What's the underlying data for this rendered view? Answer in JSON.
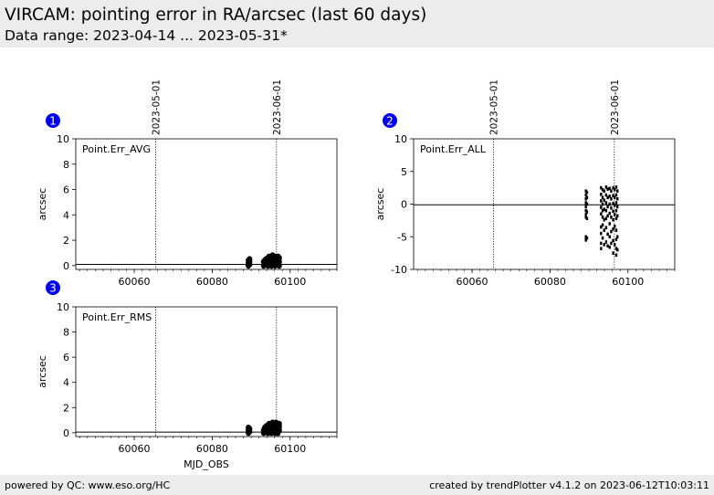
{
  "header": {
    "title": "VIRCAM: pointing error in RA/arcsec (last 60 days)",
    "subtitle": "Data range: 2023-04-14 ... 2023-05-31*"
  },
  "footer": {
    "left": "powered by QC: www.eso.org/HC",
    "right": "created by trendPlotter v4.1.2 on 2023-06-12T10:03:11"
  },
  "chart_data": [
    {
      "type": "scatter",
      "panel_number": "1",
      "label": "Point.Err_AVG",
      "ylabel": "arcsec",
      "xlabel": "",
      "xlim": [
        60045,
        60112
      ],
      "ylim": [
        -0.3,
        10
      ],
      "yticks": [
        0,
        2,
        4,
        6,
        8,
        10
      ],
      "xticks": [
        60060,
        60080,
        60100
      ],
      "reference_line": 0.1,
      "date_markers": [
        {
          "x": 60065.5,
          "label": "2023-05-01"
        },
        {
          "x": 60096.5,
          "label": "2023-06-01"
        }
      ],
      "points": [
        [
          60089.3,
          0.0
        ],
        [
          60089.3,
          0.2
        ],
        [
          60089.3,
          0.4
        ],
        [
          60089.3,
          0.1
        ],
        [
          60089.6,
          0.1
        ],
        [
          60089.6,
          0.3
        ],
        [
          60089.6,
          0.5
        ],
        [
          60093.2,
          0.0
        ],
        [
          60093.2,
          0.3
        ],
        [
          60093.5,
          0.1
        ],
        [
          60093.5,
          0.4
        ],
        [
          60093.8,
          0.2
        ],
        [
          60093.8,
          0.5
        ],
        [
          60094.3,
          0.0
        ],
        [
          60094.3,
          0.3
        ],
        [
          60094.3,
          0.6
        ],
        [
          60094.6,
          0.1
        ],
        [
          60094.6,
          0.4
        ],
        [
          60094.6,
          0.7
        ],
        [
          60095.2,
          0.0
        ],
        [
          60095.2,
          0.2
        ],
        [
          60095.2,
          0.5
        ],
        [
          60095.5,
          0.3
        ],
        [
          60095.5,
          0.6
        ],
        [
          60095.5,
          0.8
        ],
        [
          60096.1,
          0.0
        ],
        [
          60096.1,
          0.3
        ],
        [
          60096.1,
          0.6
        ],
        [
          60096.4,
          0.2
        ],
        [
          60096.4,
          0.5
        ],
        [
          60096.4,
          0.7
        ],
        [
          60096.9,
          0.1
        ],
        [
          60096.9,
          0.4
        ],
        [
          60096.9,
          0.7
        ],
        [
          60097.2,
          0.0
        ],
        [
          60097.2,
          0.3
        ],
        [
          60097.2,
          0.6
        ]
      ]
    },
    {
      "type": "scatter",
      "panel_number": "2",
      "label": "Point.Err_ALL",
      "ylabel": "arcsec",
      "xlabel": "",
      "xlim": [
        60045,
        60112
      ],
      "ylim": [
        -10,
        10
      ],
      "yticks": [
        -10,
        -5,
        0,
        5,
        10
      ],
      "xticks": [
        60060,
        60080,
        60100
      ],
      "reference_line": -0.1,
      "date_markers": [
        {
          "x": 60065.5,
          "label": "2023-05-01"
        },
        {
          "x": 60096.5,
          "label": "2023-06-01"
        }
      ],
      "points": [
        [
          60089.2,
          2.0
        ],
        [
          60089.2,
          1.4
        ],
        [
          60089.2,
          0.8
        ],
        [
          60089.2,
          0.2
        ],
        [
          60089.2,
          -0.4
        ],
        [
          60089.2,
          -1.0
        ],
        [
          60089.2,
          -1.6
        ],
        [
          60089.2,
          -2.0
        ],
        [
          60089.2,
          -5.0
        ],
        [
          60089.2,
          -5.5
        ],
        [
          60089.5,
          1.8
        ],
        [
          60089.5,
          1.0
        ],
        [
          60089.5,
          0.0
        ],
        [
          60089.5,
          -1.2
        ],
        [
          60089.5,
          -2.2
        ],
        [
          60089.5,
          -5.2
        ],
        [
          60093.1,
          2.5
        ],
        [
          60093.1,
          1.5
        ],
        [
          60093.1,
          0.5
        ],
        [
          60093.1,
          -0.5
        ],
        [
          60093.1,
          -1.5
        ],
        [
          60093.1,
          -3.5
        ],
        [
          60093.1,
          -4.5
        ],
        [
          60093.1,
          -6.0
        ],
        [
          60093.1,
          -6.8
        ],
        [
          60093.5,
          2.2
        ],
        [
          60093.5,
          1.0
        ],
        [
          60093.5,
          0.0
        ],
        [
          60093.5,
          -1.0
        ],
        [
          60093.5,
          -2.0
        ],
        [
          60093.5,
          -3.2
        ],
        [
          60093.5,
          -5.2
        ],
        [
          60093.9,
          2.0
        ],
        [
          60093.9,
          0.6
        ],
        [
          60093.9,
          -0.8
        ],
        [
          60093.9,
          -2.4
        ],
        [
          60093.9,
          -4.0
        ],
        [
          60093.9,
          -6.2
        ],
        [
          60094.4,
          2.6
        ],
        [
          60094.4,
          1.4
        ],
        [
          60094.4,
          0.2
        ],
        [
          60094.4,
          -1.0
        ],
        [
          60094.4,
          -2.2
        ],
        [
          60094.4,
          -3.6
        ],
        [
          60094.4,
          -5.8
        ],
        [
          60094.8,
          2.3
        ],
        [
          60094.8,
          1.0
        ],
        [
          60094.8,
          -0.4
        ],
        [
          60094.8,
          -1.8
        ],
        [
          60094.8,
          -4.6
        ],
        [
          60094.8,
          -6.4
        ],
        [
          60095.3,
          2.4
        ],
        [
          60095.3,
          1.2
        ],
        [
          60095.3,
          0.0
        ],
        [
          60095.3,
          -1.4
        ],
        [
          60095.3,
          -3.0
        ],
        [
          60095.3,
          -5.0
        ],
        [
          60095.3,
          -6.6
        ],
        [
          60095.7,
          2.0
        ],
        [
          60095.7,
          0.8
        ],
        [
          60095.7,
          -0.6
        ],
        [
          60095.7,
          -2.0
        ],
        [
          60095.7,
          -4.2
        ],
        [
          60095.7,
          -6.0
        ],
        [
          60096.2,
          2.5
        ],
        [
          60096.2,
          1.3
        ],
        [
          60096.2,
          0.1
        ],
        [
          60096.2,
          -1.1
        ],
        [
          60096.2,
          -2.4
        ],
        [
          60096.2,
          -3.8
        ],
        [
          60096.2,
          -5.6
        ],
        [
          60096.2,
          -7.5
        ],
        [
          60096.6,
          2.2
        ],
        [
          60096.6,
          1.0
        ],
        [
          60096.6,
          -0.2
        ],
        [
          60096.6,
          -1.6
        ],
        [
          60096.6,
          -3.4
        ],
        [
          60096.6,
          -6.2
        ],
        [
          60097.0,
          2.6
        ],
        [
          60097.0,
          1.4
        ],
        [
          60097.0,
          0.2
        ],
        [
          60097.0,
          -1.0
        ],
        [
          60097.0,
          -2.2
        ],
        [
          60097.0,
          -4.0
        ],
        [
          60097.0,
          -5.4
        ],
        [
          60097.0,
          -6.8
        ],
        [
          60097.0,
          -7.8
        ],
        [
          60097.3,
          2.0
        ],
        [
          60097.3,
          0.8
        ],
        [
          60097.3,
          -0.4
        ],
        [
          60097.3,
          -1.8
        ],
        [
          60097.3,
          -5.0
        ],
        [
          60097.3,
          -7.0
        ]
      ]
    },
    {
      "type": "scatter",
      "panel_number": "3",
      "label": "Point.Err_RMS",
      "ylabel": "arcsec",
      "xlabel": "MJD_OBS",
      "xlim": [
        60045,
        60112
      ],
      "ylim": [
        -0.3,
        10
      ],
      "yticks": [
        0,
        2,
        4,
        6,
        8,
        10
      ],
      "xticks": [
        60060,
        60080,
        60100
      ],
      "reference_line": 0.05,
      "date_markers": [
        {
          "x": 60065.5,
          "label": ""
        },
        {
          "x": 60096.5,
          "label": ""
        }
      ],
      "points": [
        [
          60089.3,
          0.0
        ],
        [
          60089.3,
          0.2
        ],
        [
          60089.3,
          0.4
        ],
        [
          60089.6,
          0.1
        ],
        [
          60089.6,
          0.3
        ],
        [
          60093.2,
          0.0
        ],
        [
          60093.2,
          0.2
        ],
        [
          60093.5,
          0.1
        ],
        [
          60093.5,
          0.4
        ],
        [
          60093.8,
          0.3
        ],
        [
          60093.8,
          0.5
        ],
        [
          60094.3,
          0.0
        ],
        [
          60094.3,
          0.3
        ],
        [
          60094.3,
          0.6
        ],
        [
          60094.6,
          0.2
        ],
        [
          60094.6,
          0.5
        ],
        [
          60094.6,
          0.7
        ],
        [
          60095.2,
          0.0
        ],
        [
          60095.2,
          0.3
        ],
        [
          60095.2,
          0.6
        ],
        [
          60095.5,
          0.2
        ],
        [
          60095.5,
          0.5
        ],
        [
          60095.5,
          0.8
        ],
        [
          60096.1,
          0.0
        ],
        [
          60096.1,
          0.4
        ],
        [
          60096.1,
          0.7
        ],
        [
          60096.4,
          0.1
        ],
        [
          60096.4,
          0.5
        ],
        [
          60096.4,
          0.8
        ],
        [
          60096.9,
          0.0
        ],
        [
          60096.9,
          0.3
        ],
        [
          60096.9,
          0.6
        ],
        [
          60097.2,
          0.2
        ],
        [
          60097.2,
          0.5
        ],
        [
          60097.2,
          0.7
        ]
      ]
    }
  ]
}
